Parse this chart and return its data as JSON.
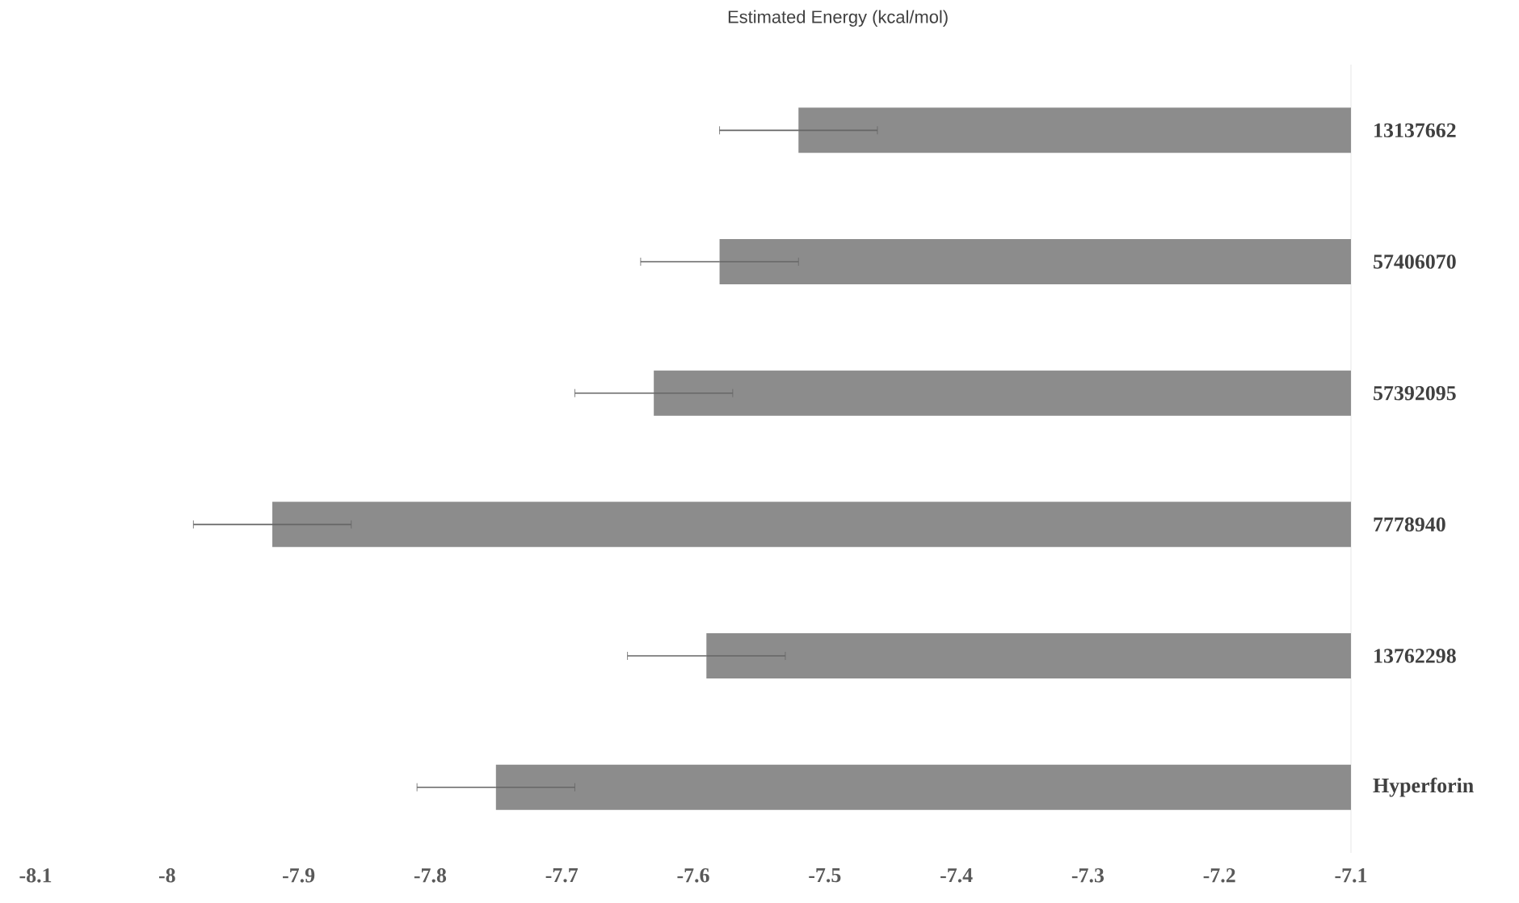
{
  "chart_data": {
    "type": "bar",
    "orientation": "horizontal",
    "title": "Estimated Energy (kcal/mol)",
    "categories": [
      "13137662",
      "57406070",
      "57392095",
      "7778940",
      "13762298",
      "Hyperforin"
    ],
    "values": [
      -7.52,
      -7.58,
      -7.63,
      -7.92,
      -7.59,
      -7.75
    ],
    "errors": [
      0.06,
      0.06,
      0.06,
      0.06,
      0.06,
      0.06
    ],
    "color": "#8c8c8c",
    "xlim": [
      -8.1,
      -7.1
    ],
    "xticks": [
      -8.1,
      -8,
      -7.9,
      -7.8,
      -7.7,
      -7.6,
      -7.5,
      -7.4,
      -7.3,
      -7.2,
      -7.1
    ]
  }
}
